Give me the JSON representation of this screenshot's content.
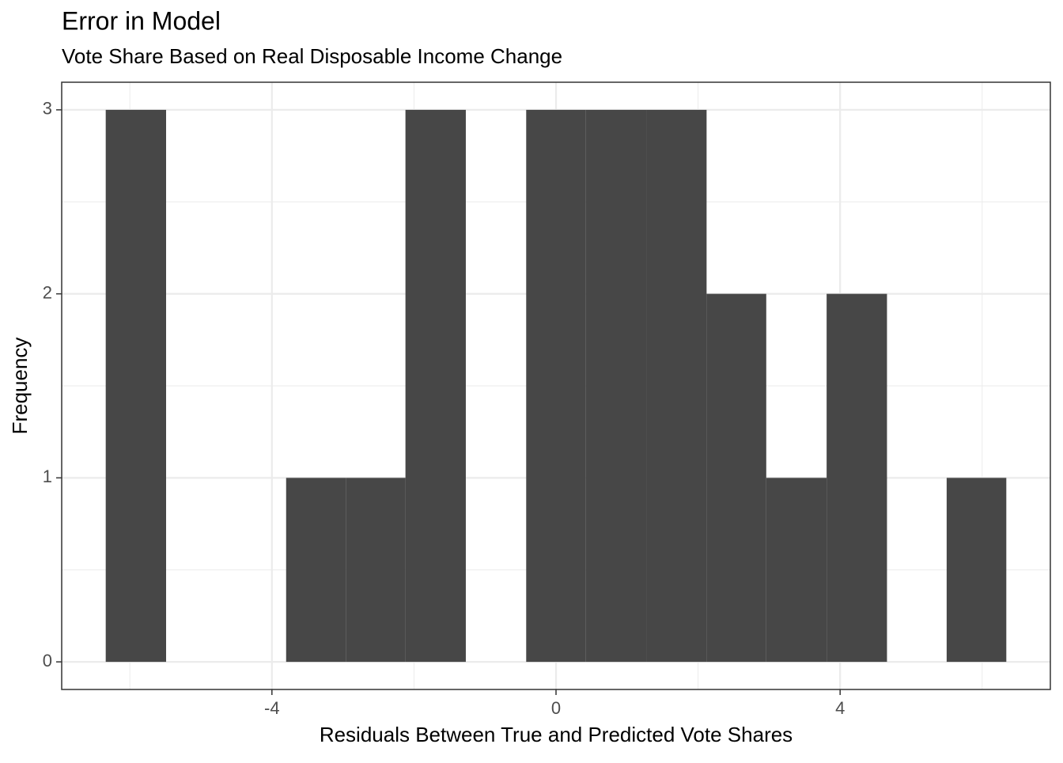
{
  "chart_data": {
    "type": "histogram",
    "title": "Error in Model",
    "subtitle": "Vote Share Based on Real Disposable Income Change",
    "x_label": "Residuals Between True and Predicted Vote Shares",
    "y_label": "Frequency",
    "bins": [
      -6.34,
      -5.49,
      -4.65,
      -3.8,
      -2.96,
      -2.12,
      -1.27,
      -0.42,
      0.42,
      1.27,
      2.12,
      2.96,
      3.81,
      4.66,
      5.5,
      6.34
    ],
    "values": [
      3,
      0,
      0,
      1,
      1,
      3,
      0,
      3,
      3,
      3,
      2,
      1,
      2,
      0,
      1
    ],
    "color": "#474747",
    "xlim": [
      -6.96,
      6.96
    ],
    "xticks": [
      -4,
      0,
      4
    ],
    "ylim": [
      -0.15,
      3.15
    ],
    "yticks": [
      0,
      1,
      2,
      3
    ],
    "grid": true
  }
}
